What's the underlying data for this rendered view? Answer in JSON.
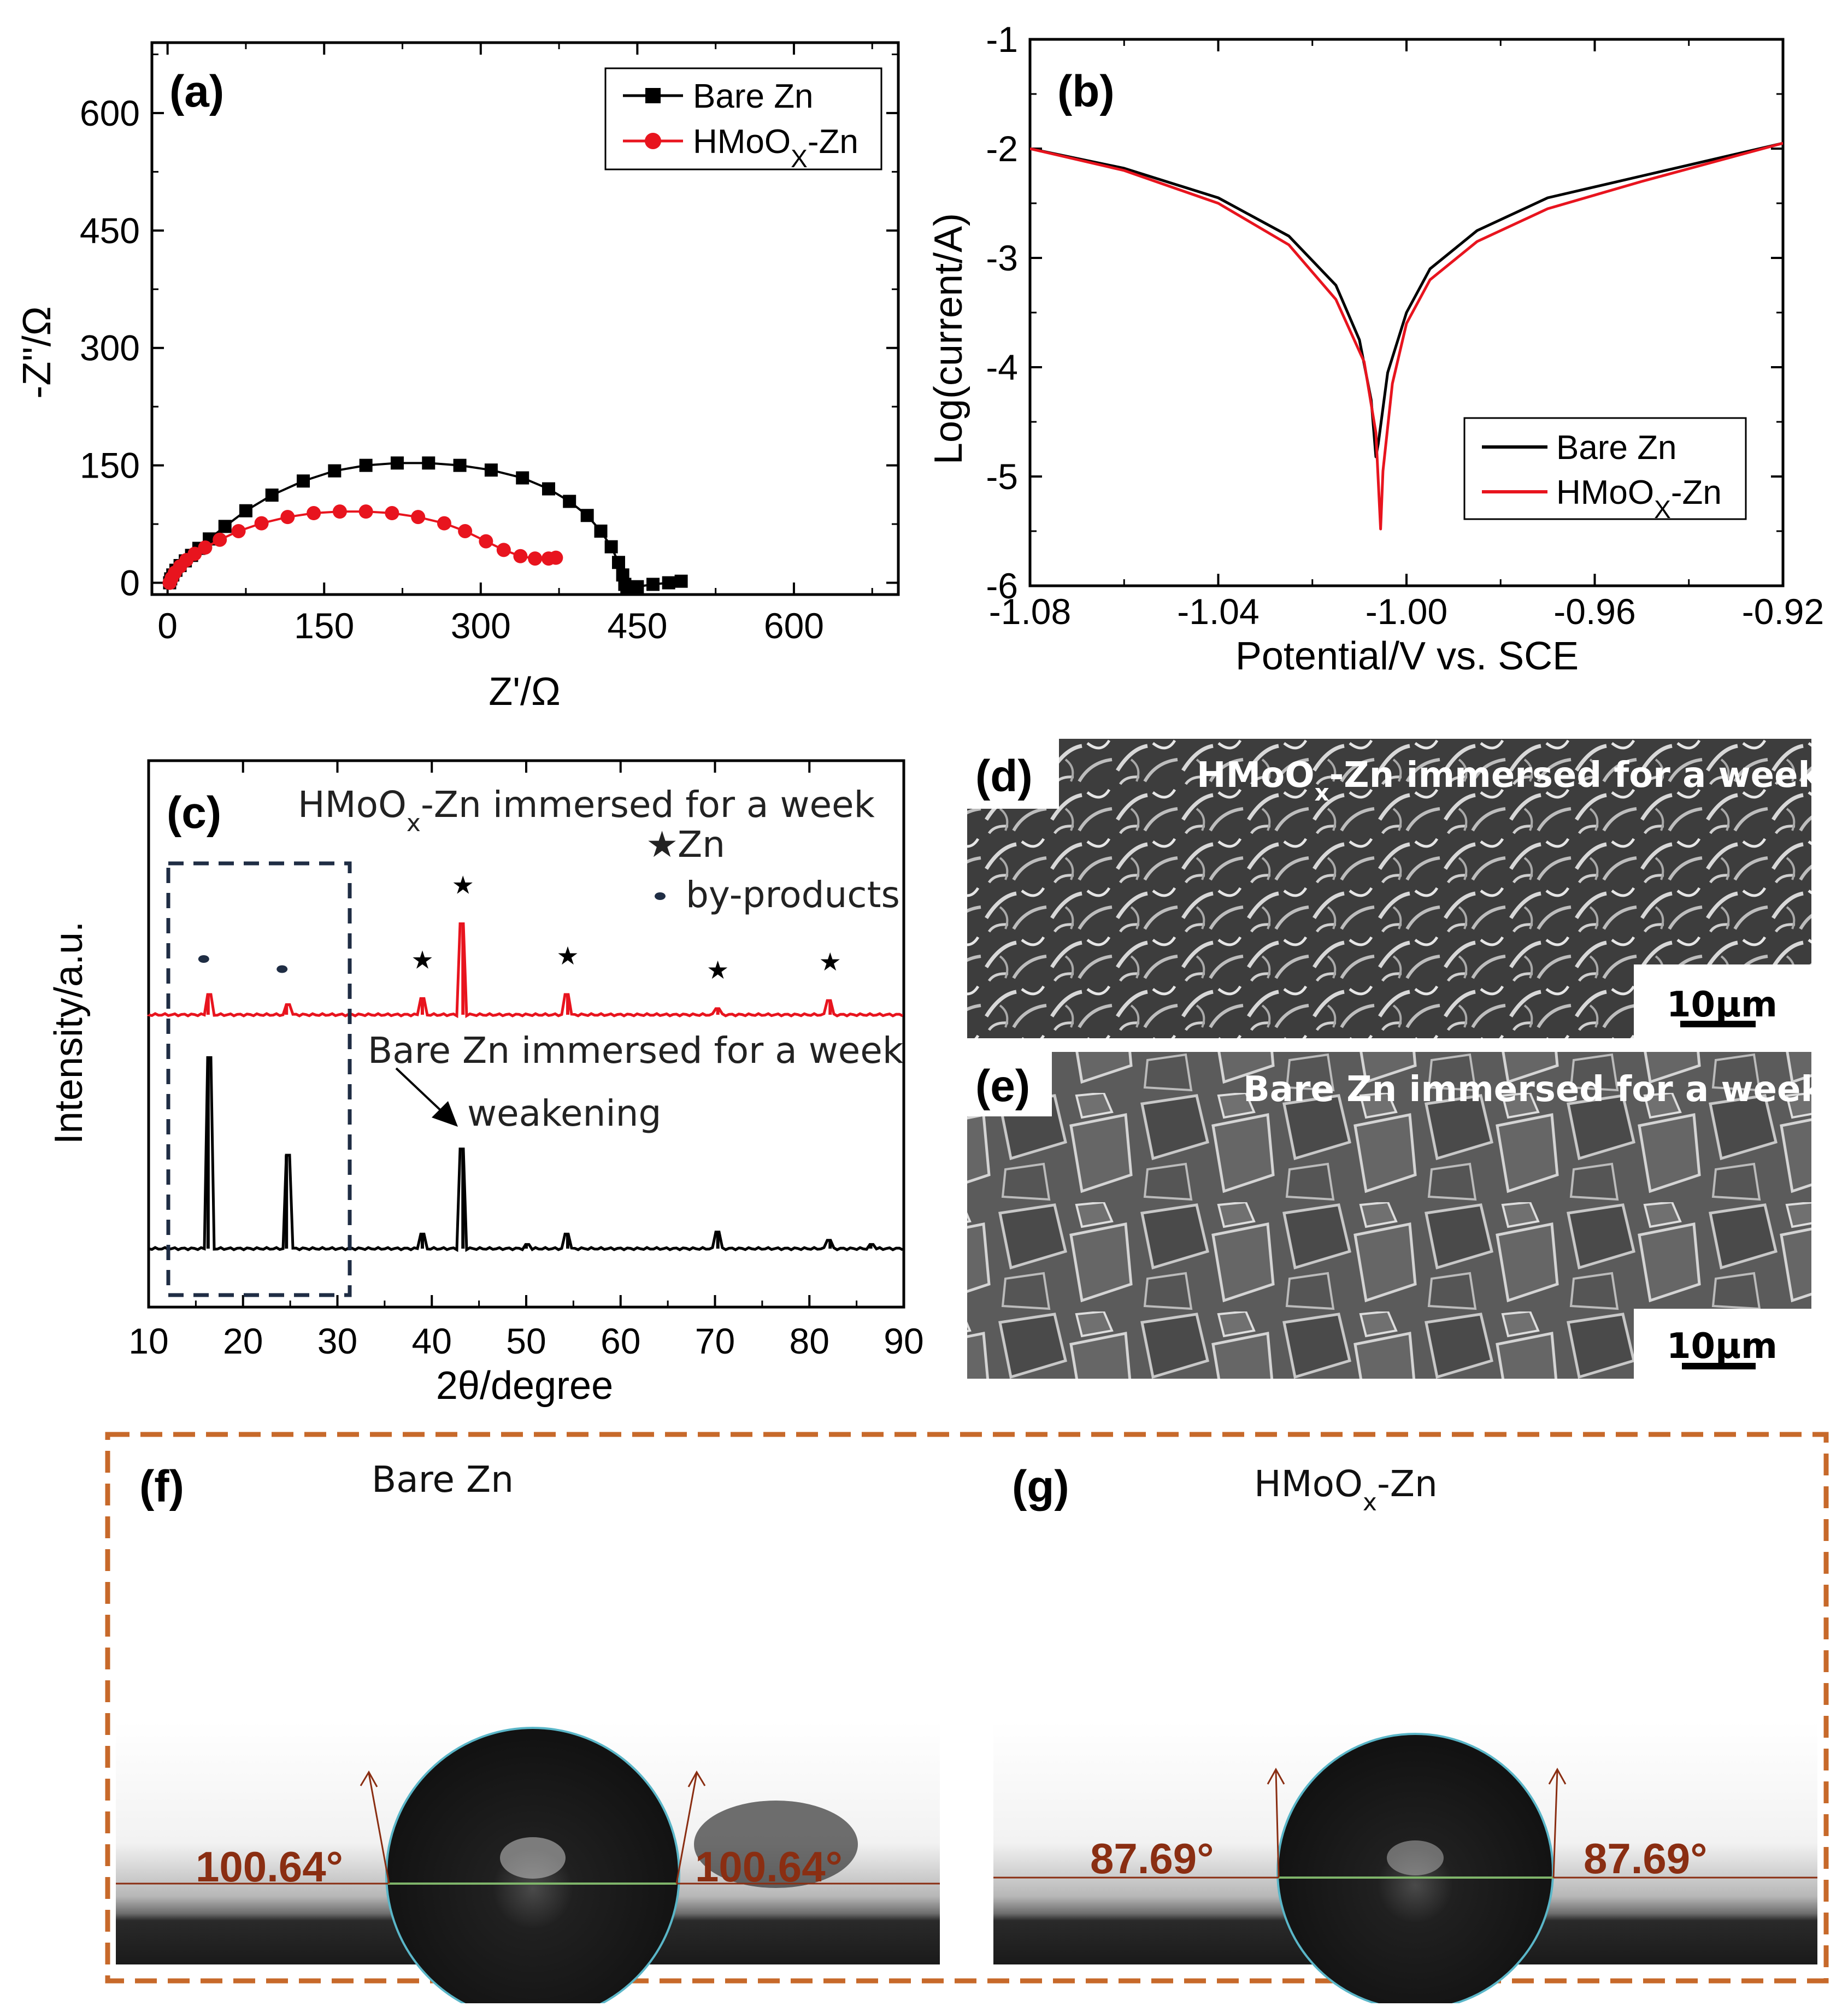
{
  "panel_a": {
    "label": "(a)",
    "xlabel": "Z'/Ω",
    "ylabel": "-Z''/Ω",
    "x_ticks": [
      "0",
      "150",
      "300",
      "450",
      "600"
    ],
    "y_ticks": [
      "0",
      "150",
      "300",
      "450",
      "600"
    ],
    "legend": [
      {
        "name": "Bare Zn",
        "sub": ""
      },
      {
        "name": "HMoO",
        "sub": "X",
        "suffix": "-Zn"
      }
    ]
  },
  "panel_b": {
    "label": "(b)",
    "xlabel": "Potential/V vs. SCE",
    "ylabel": "Log(current/A)",
    "x_ticks": [
      "-1.08",
      "-1.04",
      "-1.00",
      "-0.96",
      "-0.92"
    ],
    "y_ticks": [
      "-1",
      "-2",
      "-3",
      "-4",
      "-5",
      "-6"
    ],
    "legend": [
      {
        "name": "Bare Zn"
      },
      {
        "name": "HMoO",
        "sub": "X",
        "suffix": "-Zn"
      }
    ]
  },
  "panel_c": {
    "label": "(c)",
    "xlabel": "2θ/degree",
    "ylabel": "Intensity/a.u.",
    "x_ticks": [
      "10",
      "20",
      "30",
      "40",
      "50",
      "60",
      "70",
      "80",
      "90"
    ],
    "top_label": {
      "pre": "HMoO",
      "sub": "x",
      "post": "-Zn immersed for a week"
    },
    "bottom_label": "Bare Zn immersed for a week",
    "legend_zn": "Zn",
    "legend_byproducts": "by-products",
    "annotation": "weakening",
    "star": "★"
  },
  "panel_d": {
    "label": "(d)",
    "title": {
      "pre": "HMoO",
      "sub": "x",
      "post": "-Zn immersed for a week"
    },
    "scale": "10µm"
  },
  "panel_e": {
    "label": "(e)",
    "title": "Bare Zn immersed for a week",
    "scale": "10µm"
  },
  "panel_f": {
    "label": "(f)",
    "title": "Bare Zn",
    "angle_left": "100.64°",
    "angle_right": "100.64°"
  },
  "panel_g": {
    "label": "(g)",
    "title": {
      "pre": "HMoO",
      "sub": "x",
      "post": "-Zn"
    },
    "angle_left": "87.69°",
    "angle_right": "87.69°"
  },
  "colors": {
    "bare": "#000000",
    "hmoox": "#e8141e",
    "frame": "#c7692a",
    "box": "#1f2d44"
  },
  "chart_data": [
    {
      "type": "scatter",
      "xlabel": "Z'/Ω",
      "ylabel": "-Z''/Ω",
      "xlim": [
        -15,
        700
      ],
      "ylim": [
        -15,
        690
      ],
      "series": [
        {
          "name": "Bare Zn",
          "x": [
            2,
            3,
            5,
            8,
            12,
            17,
            23,
            30,
            40,
            55,
            75,
            100,
            130,
            160,
            190,
            220,
            250,
            280,
            310,
            340,
            365,
            385,
            402,
            415,
            425,
            432,
            436,
            438,
            440,
            441,
            443,
            450,
            465,
            480,
            492
          ],
          "y": [
            0,
            5,
            10,
            16,
            22,
            28,
            35,
            44,
            56,
            72,
            92,
            112,
            130,
            143,
            150,
            153,
            153,
            150,
            144,
            134,
            120,
            104,
            86,
            66,
            46,
            26,
            10,
            -2,
            -10,
            -16,
            -12,
            -5,
            -2,
            0,
            2
          ]
        },
        {
          "name": "HMoOx-Zn",
          "x": [
            2,
            4,
            7,
            12,
            18,
            26,
            36,
            50,
            68,
            90,
            115,
            140,
            165,
            190,
            215,
            240,
            265,
            285,
            305,
            322,
            338,
            352,
            365,
            372
          ],
          "y": [
            0,
            6,
            13,
            21,
            29,
            37,
            45,
            55,
            66,
            76,
            84,
            89,
            91,
            91,
            89,
            84,
            76,
            66,
            53,
            42,
            34,
            31,
            31,
            32
          ]
        }
      ]
    },
    {
      "type": "line",
      "xlabel": "Potential/V vs. SCE",
      "ylabel": "Log(current/A)",
      "xlim": [
        -1.08,
        -0.92
      ],
      "ylim": [
        -6,
        -1
      ],
      "series": [
        {
          "name": "Bare Zn",
          "x": [
            -1.08,
            -1.06,
            -1.04,
            -1.025,
            -1.015,
            -1.01,
            -1.0075,
            -1.0065,
            -1.006,
            -1.004,
            -1.0,
            -0.995,
            -0.985,
            -0.97,
            -0.95,
            -0.92
          ],
          "y": [
            -2.0,
            -2.18,
            -2.45,
            -2.8,
            -3.25,
            -3.75,
            -4.3,
            -4.82,
            -4.7,
            -4.05,
            -3.5,
            -3.1,
            -2.75,
            -2.45,
            -2.25,
            -1.95
          ]
        },
        {
          "name": "HMoOx-Zn",
          "x": [
            -1.08,
            -1.06,
            -1.04,
            -1.025,
            -1.015,
            -1.009,
            -1.0065,
            -1.0055,
            -1.005,
            -1.003,
            -1.0,
            -0.995,
            -0.985,
            -0.97,
            -0.95,
            -0.92
          ],
          "y": [
            -2.0,
            -2.2,
            -2.5,
            -2.88,
            -3.38,
            -3.95,
            -4.6,
            -5.48,
            -4.95,
            -4.15,
            -3.6,
            -3.2,
            -2.85,
            -2.55,
            -2.3,
            -1.95
          ]
        }
      ]
    },
    {
      "type": "line",
      "xlabel": "2θ/degree",
      "ylabel": "Intensity/a.u.",
      "xlim": [
        10,
        90
      ],
      "series": [
        {
          "name": "HMoOx-Zn immersed for a week",
          "peaks_x": [
            16.3,
            24.6,
            39.0,
            43.3,
            54.4,
            70.3,
            82.2
          ],
          "peaks_h": [
            0.1,
            0.05,
            0.08,
            0.45,
            0.1,
            0.03,
            0.07
          ]
        },
        {
          "name": "Bare Zn immersed for a week",
          "peaks_x": [
            16.3,
            24.6,
            39.0,
            43.3,
            50.0,
            54.4,
            70.3,
            82.2,
            86.5
          ],
          "peaks_h": [
            0.92,
            0.45,
            0.07,
            0.48,
            0.02,
            0.07,
            0.08,
            0.04,
            0.02
          ]
        }
      ]
    }
  ]
}
